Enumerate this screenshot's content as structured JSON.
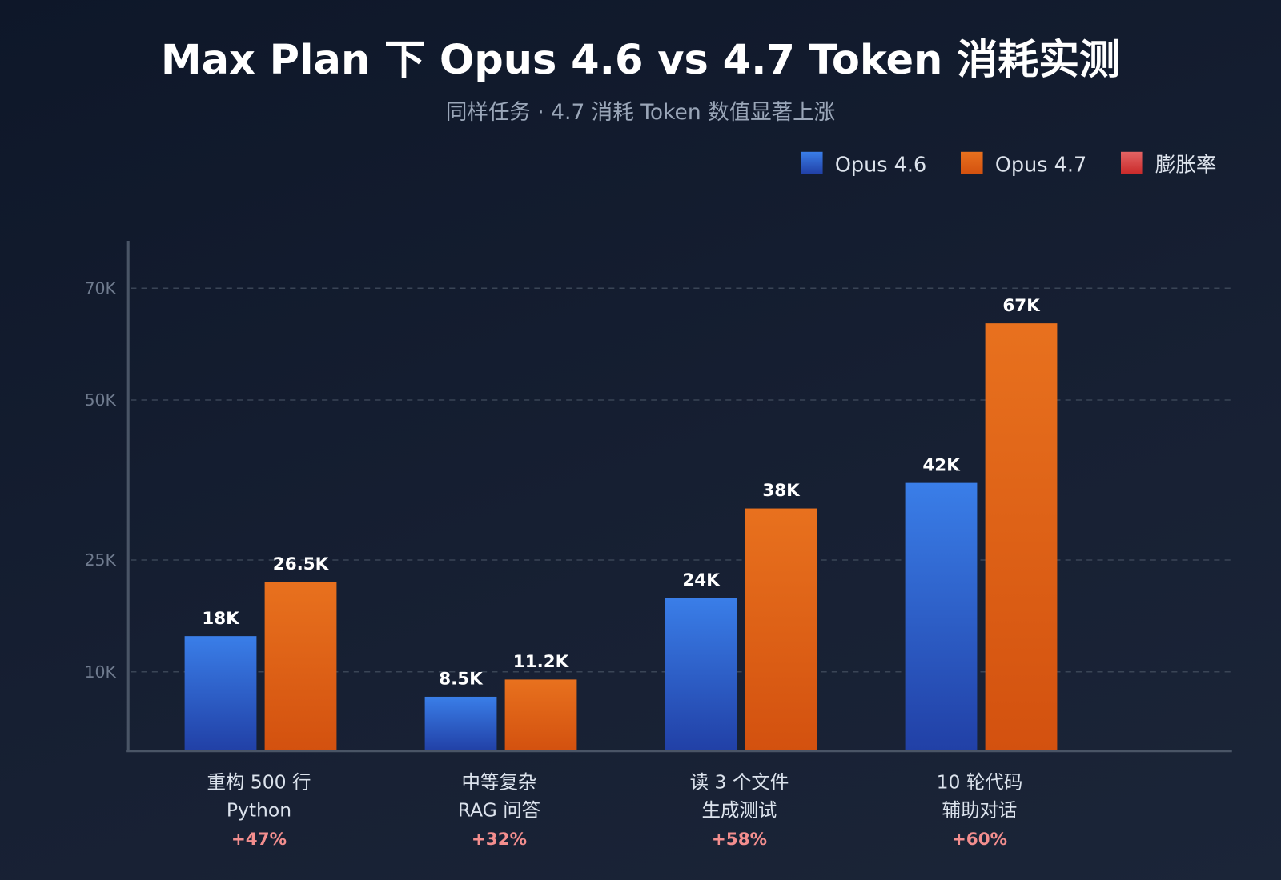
{
  "chart_data": {
    "type": "bar",
    "title": "Max Plan 下 Opus 4.6 vs 4.7 Token 消耗实测",
    "subtitle": "同样任务 · 4.7 消耗 Token 数值显著上涨",
    "categories": [
      [
        "重构 500 行",
        "Python"
      ],
      [
        "中等复杂",
        "RAG 问答"
      ],
      [
        "读 3 个文件",
        "生成测试"
      ],
      [
        "10 轮代码",
        "辅助对话"
      ]
    ],
    "series": [
      {
        "name": "Opus 4.6",
        "values": [
          18000,
          8500,
          24000,
          42000
        ],
        "labels": [
          "18K",
          "8.5K",
          "24K",
          "42K"
        ],
        "color": "#2f6ae0"
      },
      {
        "name": "Opus 4.7",
        "values": [
          26500,
          11200,
          38000,
          67000
        ],
        "labels": [
          "26.5K",
          "11.2K",
          "38K",
          "67K"
        ],
        "color": "#e0631a"
      }
    ],
    "inflation": {
      "name": "膨胀率",
      "color": "#e04a4a",
      "values": [
        "+47%",
        "+32%",
        "+58%",
        "+60%"
      ]
    },
    "yticks": [
      "10K",
      "25K",
      "50K",
      "70K"
    ],
    "grid": true,
    "legend": "top-right"
  }
}
